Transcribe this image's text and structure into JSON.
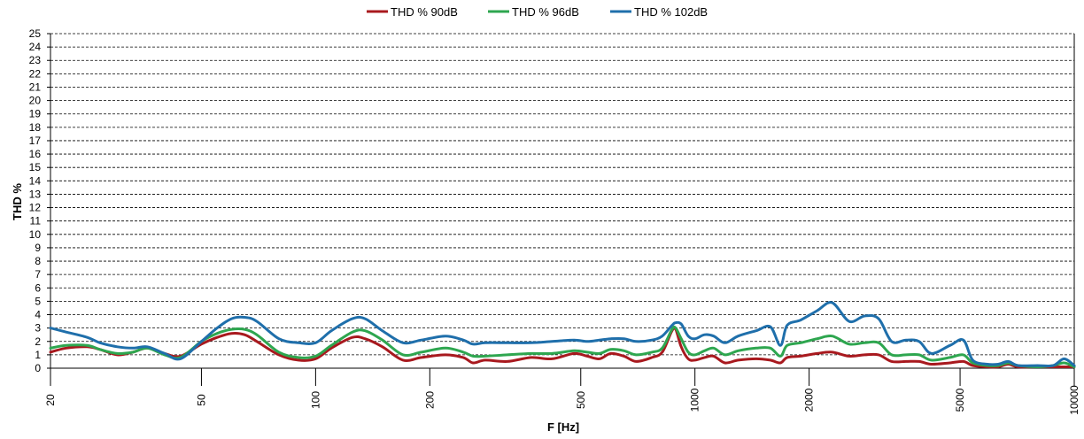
{
  "chart_data": {
    "type": "line",
    "xlabel": "F [Hz]",
    "ylabel": "THD %",
    "xscale": "log",
    "xlim": [
      20,
      10000
    ],
    "ylim": [
      0,
      25
    ],
    "x_ticks": [
      20,
      50,
      100,
      200,
      500,
      1000,
      2000,
      5000,
      10000
    ],
    "y_ticks": [
      0,
      1,
      2,
      3,
      4,
      5,
      6,
      7,
      8,
      9,
      10,
      11,
      12,
      13,
      14,
      15,
      16,
      17,
      18,
      19,
      20,
      21,
      22,
      23,
      24,
      25
    ],
    "grid": "horizontal dashed",
    "legend_position": "top-center",
    "series": [
      {
        "name": "THD % 90dB",
        "color": "#a8191e",
        "points": [
          [
            20,
            1.2
          ],
          [
            22,
            1.5
          ],
          [
            25,
            1.6
          ],
          [
            27,
            1.4
          ],
          [
            30,
            1.0
          ],
          [
            33,
            1.2
          ],
          [
            36,
            1.5
          ],
          [
            40,
            1.1
          ],
          [
            44,
            0.9
          ],
          [
            50,
            1.8
          ],
          [
            55,
            2.3
          ],
          [
            60,
            2.6
          ],
          [
            65,
            2.5
          ],
          [
            70,
            2.0
          ],
          [
            80,
            1.0
          ],
          [
            90,
            0.6
          ],
          [
            100,
            0.7
          ],
          [
            110,
            1.5
          ],
          [
            125,
            2.3
          ],
          [
            135,
            2.2
          ],
          [
            150,
            1.6
          ],
          [
            170,
            0.6
          ],
          [
            190,
            0.8
          ],
          [
            220,
            1.0
          ],
          [
            245,
            0.8
          ],
          [
            260,
            0.4
          ],
          [
            280,
            0.6
          ],
          [
            320,
            0.5
          ],
          [
            370,
            0.8
          ],
          [
            420,
            0.7
          ],
          [
            480,
            1.1
          ],
          [
            520,
            0.9
          ],
          [
            560,
            0.7
          ],
          [
            600,
            1.1
          ],
          [
            650,
            0.9
          ],
          [
            700,
            0.5
          ],
          [
            770,
            0.8
          ],
          [
            820,
            1.2
          ],
          [
            870,
            2.8
          ],
          [
            890,
            2.9
          ],
          [
            920,
            1.6
          ],
          [
            960,
            0.7
          ],
          [
            1000,
            0.6
          ],
          [
            1060,
            0.8
          ],
          [
            1120,
            0.9
          ],
          [
            1200,
            0.4
          ],
          [
            1300,
            0.6
          ],
          [
            1450,
            0.7
          ],
          [
            1580,
            0.6
          ],
          [
            1680,
            0.4
          ],
          [
            1750,
            0.8
          ],
          [
            1900,
            0.9
          ],
          [
            2100,
            1.1
          ],
          [
            2300,
            1.2
          ],
          [
            2550,
            0.9
          ],
          [
            2800,
            1.0
          ],
          [
            3050,
            1.0
          ],
          [
            3300,
            0.5
          ],
          [
            3600,
            0.5
          ],
          [
            3900,
            0.5
          ],
          [
            4200,
            0.3
          ],
          [
            4700,
            0.4
          ],
          [
            5100,
            0.5
          ],
          [
            5400,
            0.2
          ],
          [
            5900,
            0.1
          ],
          [
            6300,
            0.1
          ],
          [
            6700,
            0.3
          ],
          [
            7100,
            0.1
          ],
          [
            8000,
            0.1
          ],
          [
            8800,
            0.1
          ],
          [
            9400,
            0.1
          ],
          [
            10000,
            0.1
          ]
        ]
      },
      {
        "name": "THD % 96dB",
        "color": "#2ea64f",
        "points": [
          [
            20,
            1.5
          ],
          [
            22,
            1.7
          ],
          [
            25,
            1.7
          ],
          [
            27,
            1.4
          ],
          [
            30,
            1.1
          ],
          [
            33,
            1.2
          ],
          [
            36,
            1.5
          ],
          [
            40,
            1.0
          ],
          [
            44,
            0.8
          ],
          [
            50,
            2.0
          ],
          [
            55,
            2.6
          ],
          [
            60,
            2.9
          ],
          [
            65,
            2.9
          ],
          [
            70,
            2.5
          ],
          [
            80,
            1.2
          ],
          [
            90,
            0.8
          ],
          [
            100,
            0.9
          ],
          [
            110,
            1.7
          ],
          [
            125,
            2.7
          ],
          [
            135,
            2.8
          ],
          [
            150,
            2.1
          ],
          [
            170,
            1.0
          ],
          [
            190,
            1.2
          ],
          [
            220,
            1.5
          ],
          [
            245,
            1.2
          ],
          [
            260,
            0.9
          ],
          [
            280,
            0.9
          ],
          [
            320,
            1.0
          ],
          [
            370,
            1.1
          ],
          [
            420,
            1.1
          ],
          [
            480,
            1.3
          ],
          [
            520,
            1.2
          ],
          [
            560,
            1.1
          ],
          [
            600,
            1.4
          ],
          [
            650,
            1.3
          ],
          [
            700,
            1.0
          ],
          [
            770,
            1.2
          ],
          [
            820,
            1.5
          ],
          [
            870,
            2.9
          ],
          [
            890,
            3.0
          ],
          [
            920,
            2.2
          ],
          [
            960,
            1.2
          ],
          [
            1000,
            1.0
          ],
          [
            1060,
            1.3
          ],
          [
            1120,
            1.5
          ],
          [
            1200,
            1.0
          ],
          [
            1300,
            1.3
          ],
          [
            1450,
            1.5
          ],
          [
            1580,
            1.5
          ],
          [
            1680,
            0.9
          ],
          [
            1750,
            1.7
          ],
          [
            1900,
            1.9
          ],
          [
            2100,
            2.2
          ],
          [
            2300,
            2.4
          ],
          [
            2550,
            1.8
          ],
          [
            2800,
            1.9
          ],
          [
            3050,
            1.9
          ],
          [
            3300,
            1.0
          ],
          [
            3600,
            1.0
          ],
          [
            3900,
            1.0
          ],
          [
            4200,
            0.6
          ],
          [
            4700,
            0.8
          ],
          [
            5100,
            1.0
          ],
          [
            5400,
            0.4
          ],
          [
            5900,
            0.2
          ],
          [
            6300,
            0.2
          ],
          [
            6700,
            0.4
          ],
          [
            7100,
            0.2
          ],
          [
            8000,
            0.1
          ],
          [
            8800,
            0.2
          ],
          [
            9400,
            0.4
          ],
          [
            10000,
            0.1
          ]
        ]
      },
      {
        "name": "THD % 102dB",
        "color": "#1f6fab",
        "points": [
          [
            20,
            3.0
          ],
          [
            22,
            2.7
          ],
          [
            25,
            2.3
          ],
          [
            27,
            1.9
          ],
          [
            30,
            1.6
          ],
          [
            33,
            1.5
          ],
          [
            36,
            1.6
          ],
          [
            40,
            1.1
          ],
          [
            44,
            0.7
          ],
          [
            50,
            2.0
          ],
          [
            55,
            3.0
          ],
          [
            60,
            3.7
          ],
          [
            65,
            3.8
          ],
          [
            70,
            3.5
          ],
          [
            80,
            2.2
          ],
          [
            90,
            1.9
          ],
          [
            100,
            1.9
          ],
          [
            110,
            2.8
          ],
          [
            125,
            3.7
          ],
          [
            135,
            3.7
          ],
          [
            150,
            2.8
          ],
          [
            170,
            1.9
          ],
          [
            190,
            2.1
          ],
          [
            220,
            2.4
          ],
          [
            245,
            2.1
          ],
          [
            260,
            1.8
          ],
          [
            280,
            1.9
          ],
          [
            320,
            1.9
          ],
          [
            370,
            1.9
          ],
          [
            420,
            2.0
          ],
          [
            480,
            2.1
          ],
          [
            520,
            2.0
          ],
          [
            560,
            2.1
          ],
          [
            600,
            2.2
          ],
          [
            650,
            2.2
          ],
          [
            700,
            2.0
          ],
          [
            770,
            2.1
          ],
          [
            820,
            2.4
          ],
          [
            870,
            3.2
          ],
          [
            890,
            3.4
          ],
          [
            920,
            3.3
          ],
          [
            960,
            2.4
          ],
          [
            1000,
            2.2
          ],
          [
            1060,
            2.5
          ],
          [
            1120,
            2.4
          ],
          [
            1200,
            1.9
          ],
          [
            1300,
            2.4
          ],
          [
            1450,
            2.8
          ],
          [
            1580,
            3.1
          ],
          [
            1680,
            1.7
          ],
          [
            1750,
            3.2
          ],
          [
            1900,
            3.6
          ],
          [
            2100,
            4.3
          ],
          [
            2300,
            4.9
          ],
          [
            2550,
            3.5
          ],
          [
            2800,
            3.9
          ],
          [
            3050,
            3.7
          ],
          [
            3300,
            2.0
          ],
          [
            3600,
            2.1
          ],
          [
            3900,
            2.0
          ],
          [
            4200,
            1.1
          ],
          [
            4700,
            1.7
          ],
          [
            5100,
            2.1
          ],
          [
            5400,
            0.6
          ],
          [
            5900,
            0.3
          ],
          [
            6300,
            0.3
          ],
          [
            6700,
            0.5
          ],
          [
            7100,
            0.2
          ],
          [
            8000,
            0.2
          ],
          [
            8800,
            0.2
          ],
          [
            9400,
            0.7
          ],
          [
            10000,
            0.2
          ]
        ]
      }
    ]
  }
}
